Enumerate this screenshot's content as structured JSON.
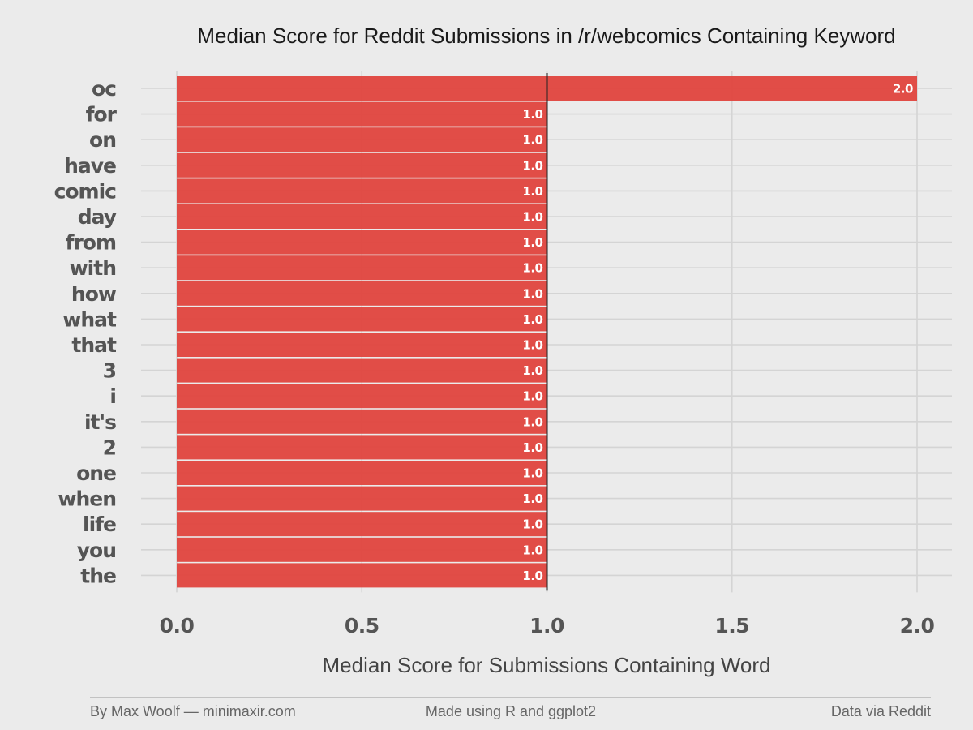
{
  "chart_data": {
    "type": "bar",
    "orientation": "horizontal",
    "title": "Median Score for Reddit Submissions in /r/webcomics Containing Keyword",
    "xlabel": "Median Score for Submissions Containing Word",
    "ylabel": "",
    "categories": [
      "oc",
      "for",
      "on",
      "have",
      "comic",
      "day",
      "from",
      "with",
      "how",
      "what",
      "that",
      "3",
      "i",
      "it's",
      "2",
      "one",
      "when",
      "life",
      "you",
      "the"
    ],
    "values": [
      2.0,
      1.0,
      1.0,
      1.0,
      1.0,
      1.0,
      1.0,
      1.0,
      1.0,
      1.0,
      1.0,
      1.0,
      1.0,
      1.0,
      1.0,
      1.0,
      1.0,
      1.0,
      1.0,
      1.0
    ],
    "value_labels": [
      "2.0",
      "1.0",
      "1.0",
      "1.0",
      "1.0",
      "1.0",
      "1.0",
      "1.0",
      "1.0",
      "1.0",
      "1.0",
      "1.0",
      "1.0",
      "1.0",
      "1.0",
      "1.0",
      "1.0",
      "1.0",
      "1.0",
      "1.0"
    ],
    "xlim": [
      0,
      2.0
    ],
    "xticks": [
      0.0,
      0.5,
      1.0,
      1.5,
      2.0
    ],
    "xtick_labels": [
      "0.0",
      "0.5",
      "1.0",
      "1.5",
      "2.0"
    ],
    "reference_line": 1.0,
    "grid": true,
    "legend": "none",
    "bar_color": "#e0443e",
    "background_color": "#ebebeb",
    "grid_color": "#d4d4d4"
  },
  "footer": {
    "left": "By Max Woolf — minimaxir.com",
    "center": "Made using R and ggplot2",
    "right": "Data via Reddit"
  }
}
